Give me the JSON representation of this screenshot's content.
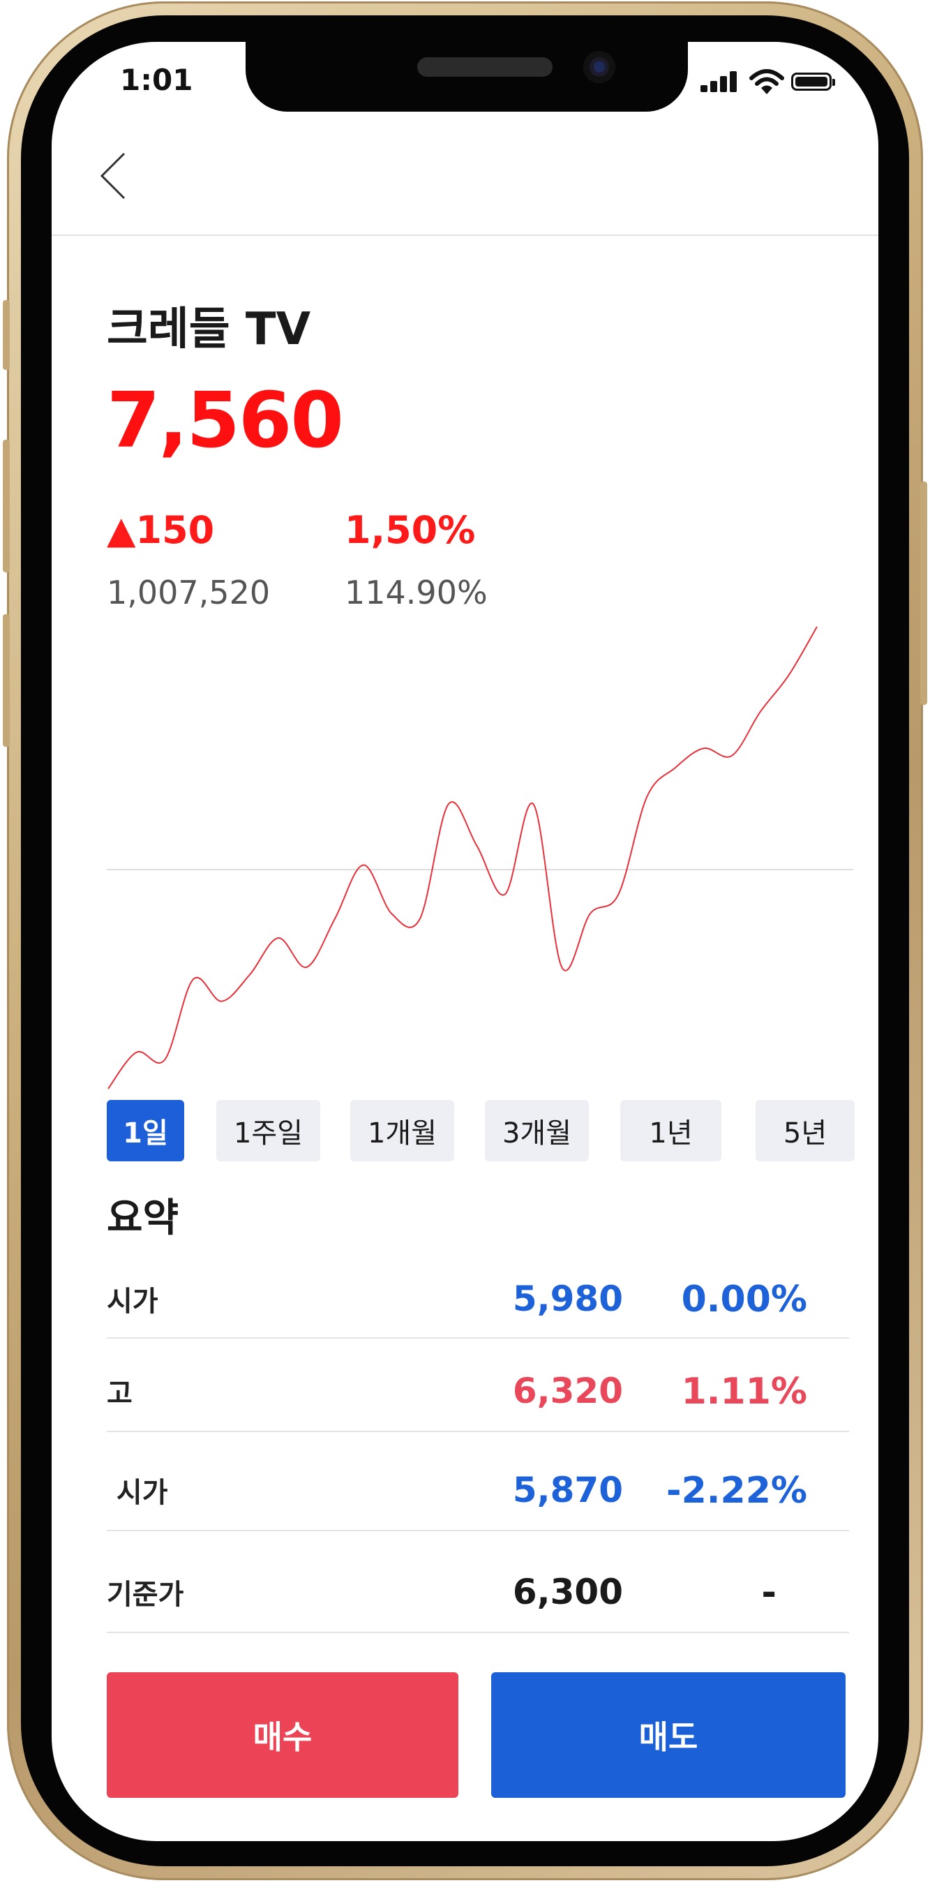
{
  "status_bar": {
    "time": "1:01",
    "icons": [
      "signal-icon",
      "wifi-icon",
      "battery-icon"
    ]
  },
  "header": {
    "back_icon": "chevron-left-icon"
  },
  "stock": {
    "name": "크레들 TV",
    "price": "7,560",
    "change": "▲150",
    "change_percent": "1,50%",
    "volume": "1,007,520",
    "turnover_percent": "114.90%"
  },
  "chart_data": {
    "type": "line",
    "color": "#e8303a",
    "reference_line": true,
    "values": [
      0.0,
      0.15,
      0.12,
      0.45,
      0.36,
      0.47,
      0.62,
      0.5,
      0.7,
      0.92,
      0.72,
      0.7,
      1.17,
      1.0,
      0.8,
      1.17,
      0.5,
      0.72,
      0.8,
      1.2,
      1.32,
      1.4,
      1.37,
      1.55,
      1.7,
      1.9
    ]
  },
  "periods": [
    {
      "label": "1일",
      "active": true
    },
    {
      "label": "1주일",
      "active": false
    },
    {
      "label": "1개월",
      "active": false
    },
    {
      "label": "3개월",
      "active": false
    },
    {
      "label": "1년",
      "active": false
    },
    {
      "label": "5년",
      "active": false
    }
  ],
  "summary": {
    "title": "요약",
    "rows": [
      {
        "label": "시가",
        "value": "5,980",
        "percent": "0.00%",
        "color": "#1d62d8"
      },
      {
        "label": "고",
        "value": "6,320",
        "percent": "1.11%",
        "color": "#e8485a"
      },
      {
        "label": " 시가",
        "value": "5,870",
        "percent": "-2.22%",
        "color": "#1d62d8"
      },
      {
        "label": "기준가",
        "value": "6,300",
        "percent": "-",
        "color": "#1a1a1a"
      }
    ]
  },
  "actions": {
    "buy_label": "매수",
    "sell_label": "매도",
    "buy_color": "#ec4456",
    "sell_color": "#1c60d8"
  }
}
